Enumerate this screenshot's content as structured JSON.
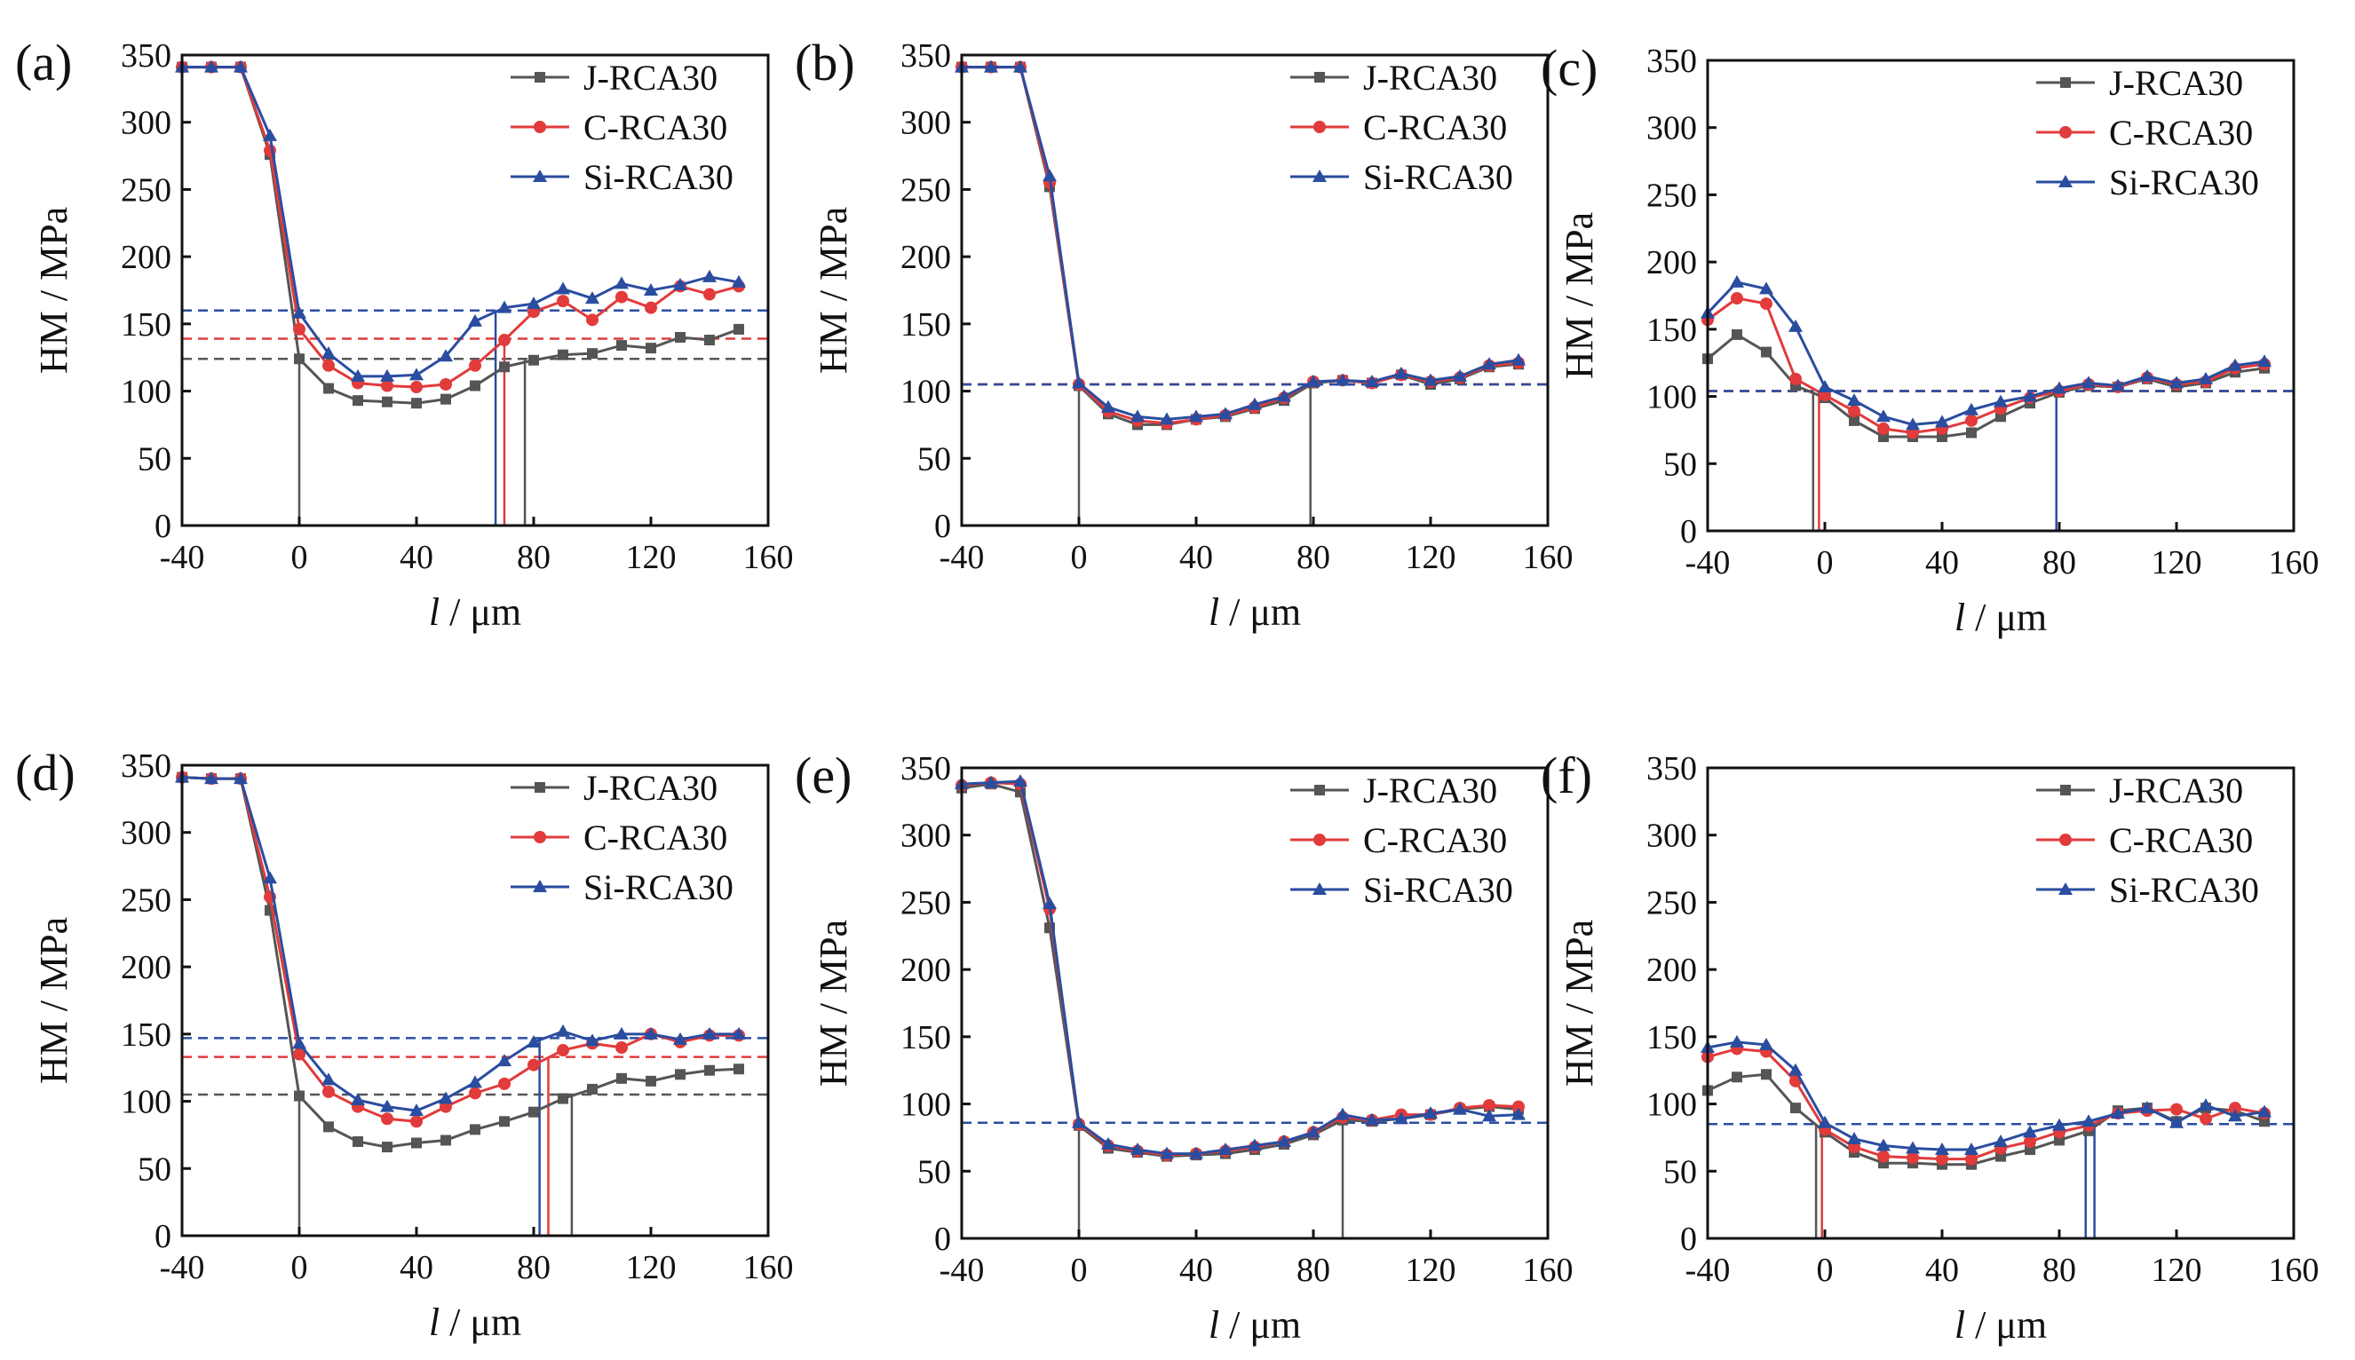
{
  "figure": {
    "series_names": [
      "J-RCA30",
      "C-RCA30",
      "Si-RCA30"
    ],
    "series_colors": [
      "#555555",
      "#e23b3b",
      "#2a4da0"
    ],
    "series_markers": [
      "square",
      "circle",
      "triangle"
    ],
    "xlabel_italic": "l",
    "xlabel_rest": " / μm",
    "ylabel": "HM / MPa",
    "xlim": [
      -40,
      160
    ],
    "ylim": [
      0,
      350
    ],
    "xticks": [
      "-40",
      "0",
      "40",
      "80",
      "120",
      "160"
    ],
    "yticks": [
      "0",
      "50",
      "100",
      "150",
      "200",
      "250",
      "300",
      "350"
    ]
  },
  "chart_data": [
    {
      "panel": "(a)",
      "type": "line",
      "x": [
        -40,
        -30,
        -20,
        -10,
        0,
        10,
        20,
        30,
        40,
        50,
        60,
        70,
        80,
        90,
        100,
        110,
        120,
        130,
        140,
        150
      ],
      "series": [
        {
          "name": "J-RCA30",
          "values": [
            341,
            341,
            341,
            276,
            124,
            102,
            93,
            92,
            91,
            94,
            104,
            118,
            123,
            127,
            128,
            134,
            132,
            140,
            138,
            146
          ]
        },
        {
          "name": "C-RCA30",
          "values": [
            341,
            341,
            341,
            279,
            146,
            119,
            106,
            104,
            103,
            105,
            119,
            138,
            159,
            167,
            153,
            170,
            162,
            178,
            172,
            178
          ]
        },
        {
          "name": "Si-RCA30",
          "values": [
            341,
            341,
            341,
            290,
            158,
            128,
            111,
            111,
            112,
            126,
            152,
            162,
            165,
            176,
            169,
            180,
            175,
            179,
            185,
            181
          ]
        }
      ],
      "ref_levels": [
        124,
        139,
        160
      ],
      "drop_x": [
        [
          0,
          77
        ],
        [
          70
        ],
        [
          67
        ]
      ]
    },
    {
      "panel": "(b)",
      "type": "line",
      "x": [
        -40,
        -30,
        -20,
        -10,
        0,
        10,
        20,
        30,
        40,
        50,
        60,
        70,
        80,
        90,
        100,
        110,
        120,
        130,
        140,
        150
      ],
      "series": [
        {
          "name": "J-RCA30",
          "values": [
            341,
            341,
            341,
            252,
            104,
            83,
            75,
            75,
            79,
            81,
            87,
            93,
            106,
            108,
            106,
            112,
            105,
            109,
            118,
            120
          ]
        },
        {
          "name": "C-RCA30",
          "values": [
            341,
            341,
            341,
            255,
            105,
            85,
            78,
            76,
            79,
            82,
            88,
            95,
            107,
            108,
            106,
            112,
            107,
            110,
            119,
            121
          ]
        },
        {
          "name": "Si-RCA30",
          "values": [
            341,
            341,
            341,
            260,
            106,
            88,
            81,
            79,
            81,
            83,
            90,
            96,
            107,
            108,
            107,
            113,
            108,
            111,
            120,
            123
          ]
        }
      ],
      "ref_levels": [
        105,
        105,
        105
      ],
      "drop_x": [
        [
          0,
          79
        ],
        [],
        []
      ]
    },
    {
      "panel": "(c)",
      "type": "line",
      "x": [
        -40,
        -30,
        -20,
        -10,
        0,
        10,
        20,
        30,
        40,
        50,
        60,
        70,
        80,
        90,
        100,
        110,
        120,
        130,
        140,
        150
      ],
      "series": [
        {
          "name": "J-RCA30",
          "values": [
            128,
            146,
            133,
            108,
            99,
            82,
            70,
            70,
            70,
            73,
            85,
            95,
            103,
            108,
            107,
            113,
            107,
            110,
            118,
            121
          ]
        },
        {
          "name": "C-RCA30",
          "values": [
            157,
            173,
            169,
            113,
            101,
            89,
            76,
            73,
            76,
            82,
            91,
            99,
            104,
            109,
            107,
            114,
            109,
            111,
            121,
            124
          ]
        },
        {
          "name": "Si-RCA30",
          "values": [
            162,
            185,
            180,
            152,
            107,
            97,
            85,
            79,
            81,
            90,
            96,
            100,
            106,
            110,
            108,
            115,
            110,
            113,
            123,
            126
          ]
        }
      ],
      "ref_levels": [
        104,
        104,
        104
      ],
      "drop_x": [
        [
          -4
        ],
        [
          -2
        ],
        [
          79
        ]
      ]
    },
    {
      "panel": "(d)",
      "type": "line",
      "x": [
        -40,
        -30,
        -20,
        -10,
        0,
        10,
        20,
        30,
        40,
        50,
        60,
        70,
        80,
        90,
        100,
        110,
        120,
        130,
        140,
        150
      ],
      "series": [
        {
          "name": "J-RCA30",
          "values": [
            341,
            340,
            340,
            242,
            104,
            81,
            70,
            66,
            69,
            71,
            79,
            85,
            92,
            102,
            109,
            117,
            115,
            120,
            123,
            124
          ]
        },
        {
          "name": "C-RCA30",
          "values": [
            341,
            340,
            340,
            252,
            135,
            107,
            96,
            87,
            85,
            96,
            106,
            113,
            127,
            138,
            143,
            140,
            150,
            144,
            149,
            149
          ]
        },
        {
          "name": "Si-RCA30",
          "values": [
            341,
            340,
            340,
            266,
            143,
            116,
            101,
            96,
            93,
            102,
            114,
            130,
            144,
            152,
            145,
            150,
            150,
            146,
            150,
            150
          ]
        }
      ],
      "ref_levels": [
        105,
        133,
        147
      ],
      "drop_x": [
        [
          0,
          93
        ],
        [
          85
        ],
        [
          82
        ]
      ]
    },
    {
      "panel": "(e)",
      "type": "line",
      "x": [
        -40,
        -30,
        -20,
        -10,
        0,
        10,
        20,
        30,
        40,
        50,
        60,
        70,
        80,
        90,
        100,
        110,
        120,
        130,
        140,
        150
      ],
      "series": [
        {
          "name": "J-RCA30",
          "values": [
            335,
            338,
            332,
            231,
            84,
            67,
            64,
            61,
            62,
            63,
            66,
            70,
            77,
            88,
            87,
            89,
            92,
            96,
            98,
            96
          ]
        },
        {
          "name": "C-RCA30",
          "values": [
            337,
            339,
            338,
            245,
            85,
            69,
            65,
            62,
            63,
            65,
            68,
            72,
            79,
            90,
            88,
            92,
            92,
            97,
            99,
            98
          ]
        },
        {
          "name": "Si-RCA30",
          "values": [
            338,
            339,
            340,
            249,
            86,
            70,
            66,
            63,
            63,
            66,
            69,
            72,
            79,
            92,
            88,
            89,
            93,
            96,
            91,
            92
          ]
        }
      ],
      "ref_levels": [
        86,
        86,
        86
      ],
      "drop_x": [
        [
          0,
          90
        ],
        [],
        []
      ]
    },
    {
      "panel": "(f)",
      "type": "line",
      "x": [
        -40,
        -30,
        -20,
        -10,
        0,
        10,
        20,
        30,
        40,
        50,
        60,
        70,
        80,
        90,
        100,
        110,
        120,
        130,
        140,
        150
      ],
      "series": [
        {
          "name": "J-RCA30",
          "values": [
            110,
            120,
            122,
            97,
            79,
            64,
            56,
            56,
            55,
            55,
            61,
            66,
            73,
            80,
            95,
            97,
            87,
            97,
            95,
            87
          ]
        },
        {
          "name": "C-RCA30",
          "values": [
            135,
            141,
            139,
            117,
            81,
            68,
            61,
            60,
            59,
            59,
            67,
            72,
            79,
            84,
            93,
            95,
            96,
            89,
            97,
            93
          ]
        },
        {
          "name": "Si-RCA30",
          "values": [
            142,
            146,
            144,
            125,
            86,
            74,
            69,
            67,
            66,
            66,
            72,
            79,
            84,
            87,
            93,
            97,
            86,
            99,
            91,
            94
          ]
        }
      ],
      "ref_levels": [
        85,
        85,
        85
      ],
      "drop_x": [
        [
          -3
        ],
        [
          -1
        ],
        [
          89,
          92
        ]
      ]
    }
  ]
}
